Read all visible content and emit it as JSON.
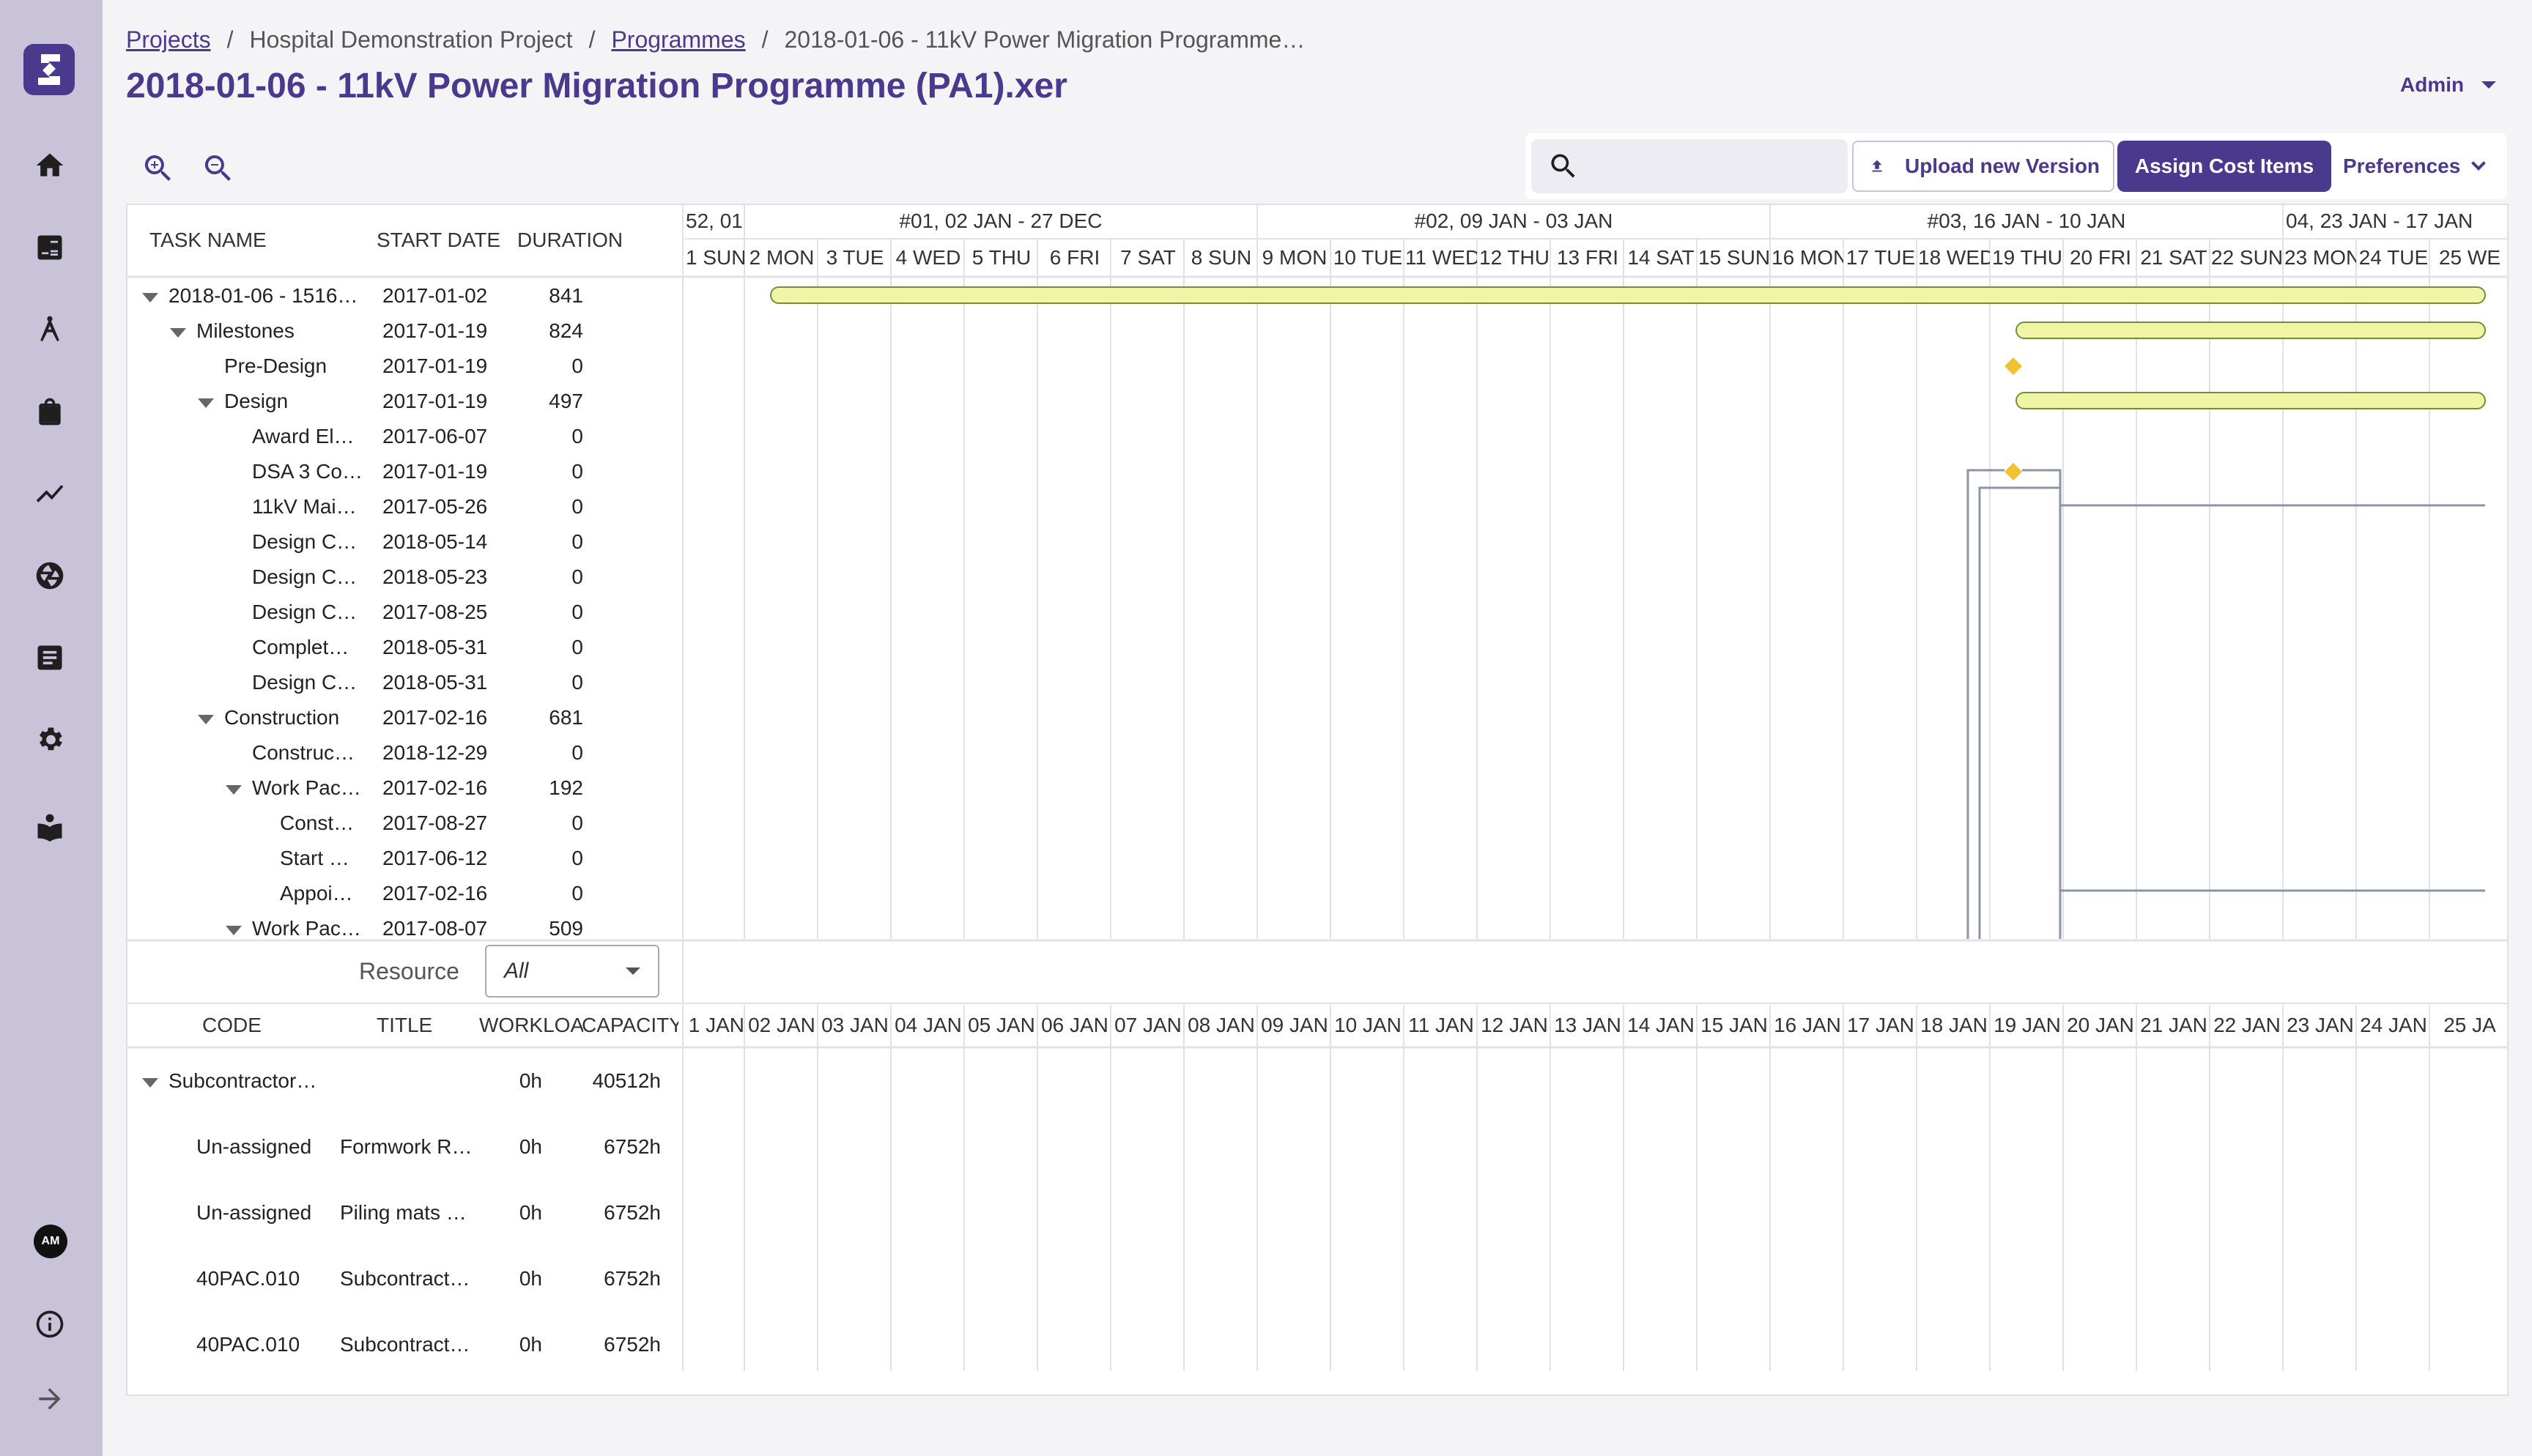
{
  "breadcrumb": {
    "projects": "Projects",
    "project": "Hospital Demonstration Project",
    "programmes": "Programmes",
    "current": "2018-01-06 - 11kV Power Migration Programme…",
    "separator": "/"
  },
  "page_title": "2018-01-06 - 11kV Power Migration Programme (PA1).xer",
  "user_menu": {
    "label": "Admin"
  },
  "sidebar": {
    "items": [
      {
        "icon": "home-icon"
      },
      {
        "icon": "calculator-icon"
      },
      {
        "icon": "compass-icon"
      },
      {
        "icon": "briefcase-icon"
      },
      {
        "icon": "trend-icon"
      },
      {
        "icon": "aperture-icon"
      },
      {
        "icon": "document-icon"
      },
      {
        "icon": "gear-icon"
      },
      {
        "icon": "book-icon"
      }
    ],
    "avatar_initials": "AM"
  },
  "toolbar": {
    "search_placeholder": "",
    "upload_label": "Upload new Version",
    "assign_label": "Assign Cost Items",
    "preferences_label": "Preferences"
  },
  "task_table": {
    "columns": [
      "TASK NAME",
      "START DATE",
      "DURATION"
    ],
    "rows": [
      {
        "name": "2018-01-06 - 1516…",
        "start": "2017-01-02",
        "duration": "841",
        "level": 0,
        "expanded": true
      },
      {
        "name": "Milestones",
        "start": "2017-01-19",
        "duration": "824",
        "level": 1,
        "expanded": true
      },
      {
        "name": "Pre-Design",
        "start": "2017-01-19",
        "duration": "0",
        "level": 2
      },
      {
        "name": "Design",
        "start": "2017-01-19",
        "duration": "497",
        "level": 2,
        "expanded": true
      },
      {
        "name": "Award El…",
        "start": "2017-06-07",
        "duration": "0",
        "level": 3
      },
      {
        "name": "DSA 3 Co…",
        "start": "2017-01-19",
        "duration": "0",
        "level": 3
      },
      {
        "name": "11kV Mai…",
        "start": "2017-05-26",
        "duration": "0",
        "level": 3
      },
      {
        "name": "Design C…",
        "start": "2018-05-14",
        "duration": "0",
        "level": 3
      },
      {
        "name": "Design C…",
        "start": "2018-05-23",
        "duration": "0",
        "level": 3
      },
      {
        "name": "Design C…",
        "start": "2017-08-25",
        "duration": "0",
        "level": 3
      },
      {
        "name": "Complet…",
        "start": "2018-05-31",
        "duration": "0",
        "level": 3
      },
      {
        "name": "Design C…",
        "start": "2018-05-31",
        "duration": "0",
        "level": 3
      },
      {
        "name": "Construction",
        "start": "2017-02-16",
        "duration": "681",
        "level": 2,
        "expanded": true
      },
      {
        "name": "Construc…",
        "start": "2018-12-29",
        "duration": "0",
        "level": 3
      },
      {
        "name": "Work Pac…",
        "start": "2017-02-16",
        "duration": "192",
        "level": 3,
        "expanded": true
      },
      {
        "name": "Const…",
        "start": "2017-08-27",
        "duration": "0",
        "level": 4
      },
      {
        "name": "Start …",
        "start": "2017-06-12",
        "duration": "0",
        "level": 4
      },
      {
        "name": "Appoi…",
        "start": "2017-02-16",
        "duration": "0",
        "level": 4
      },
      {
        "name": "Work Pac…",
        "start": "2017-08-07",
        "duration": "509",
        "level": 3,
        "expanded": true
      }
    ]
  },
  "timeline": {
    "weeks": [
      "52, 01",
      "#01, 02 JAN - 27 DEC",
      "#02, 09 JAN - 03 JAN",
      "#03, 16 JAN - 10 JAN",
      "04, 23 JAN - 17 JAN"
    ],
    "days": [
      "1 SUN",
      "2 MON",
      "3 TUE",
      "4 WED",
      "5 THU",
      "6 FRI",
      "7 SAT",
      "8 SUN",
      "9 MON",
      "10 TUE",
      "11 WED",
      "12 THU",
      "13 FRI",
      "14 SAT",
      "15 SUN",
      "16 MON",
      "17 TUE",
      "18 WED",
      "19 THU",
      "20 FRI",
      "21 SAT",
      "22 SUN",
      "23 MON",
      "24 TUE",
      "25 WE"
    ]
  },
  "resource": {
    "filter_label": "Resource",
    "filter_value": "All",
    "columns": [
      "CODE",
      "TITLE",
      "WORKLOAD",
      "CAPACITY"
    ],
    "day_labels": [
      "1 JAN",
      "02 JAN",
      "03 JAN",
      "04 JAN",
      "05 JAN",
      "06 JAN",
      "07 JAN",
      "08 JAN",
      "09 JAN",
      "10 JAN",
      "11 JAN",
      "12 JAN",
      "13 JAN",
      "14 JAN",
      "15 JAN",
      "16 JAN",
      "17 JAN",
      "18 JAN",
      "19 JAN",
      "20 JAN",
      "21 JAN",
      "22 JAN",
      "23 JAN",
      "24 JAN",
      "25 JA"
    ],
    "rows": [
      {
        "code": "Subcontractor…",
        "title": "",
        "workload": "0h",
        "capacity": "40512h",
        "group": true
      },
      {
        "code": "Un-assigned",
        "title": "Formwork R…",
        "workload": "0h",
        "capacity": "6752h"
      },
      {
        "code": "Un-assigned",
        "title": "Piling mats …",
        "workload": "0h",
        "capacity": "6752h"
      },
      {
        "code": "40PAC.010",
        "title": "Subcontract…",
        "workload": "0h",
        "capacity": "6752h"
      },
      {
        "code": "40PAC.010",
        "title": "Subcontract…",
        "workload": "0h",
        "capacity": "6752h"
      }
    ]
  },
  "colors": {
    "brand": "#4a3a8e",
    "sidebar_bg": "#c9c3da",
    "bar_fill": "#eef6a6",
    "bar_stroke": "#7a8a3a",
    "milestone": "#f2c230",
    "link": "#8a96a8"
  }
}
